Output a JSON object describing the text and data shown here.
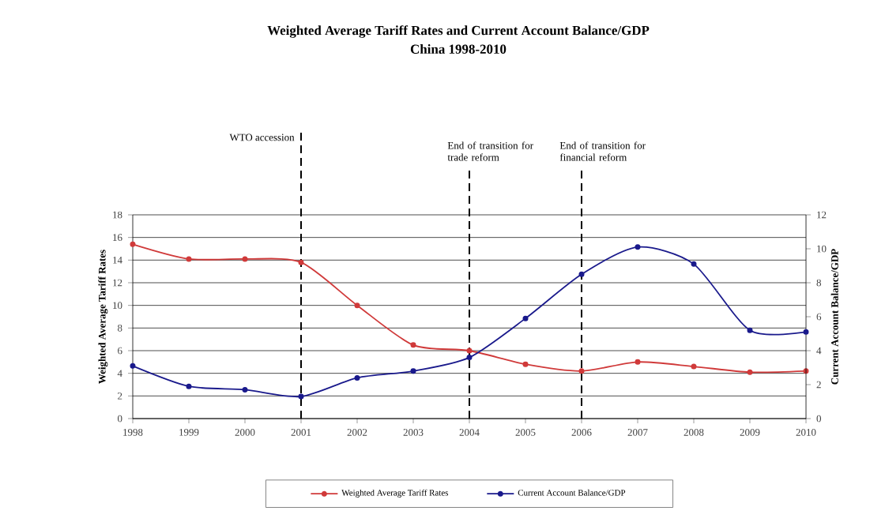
{
  "chart_data": {
    "type": "line",
    "title": "Weighted Average Tariff Rates and Current Account Balance/GDP",
    "subtitle": "China 1998-2010",
    "ylabel": "Weighted Average Tariff Rates",
    "y2label": "Current Account Balance/GDP",
    "x": [
      1998,
      1999,
      2000,
      2001,
      2002,
      2003,
      2004,
      2005,
      2006,
      2007,
      2008,
      2009,
      2010
    ],
    "xlim": [
      1998,
      2010
    ],
    "xticks": [
      1998,
      1999,
      2000,
      2001,
      2002,
      2003,
      2004,
      2005,
      2006,
      2007,
      2008,
      2009,
      2010
    ],
    "ylim": [
      0,
      18
    ],
    "yticks": [
      0,
      2,
      4,
      6,
      8,
      10,
      12,
      14,
      16,
      18
    ],
    "y2lim": [
      0,
      12
    ],
    "y2ticks": [
      0,
      2,
      4,
      6,
      8,
      10,
      12
    ],
    "series": [
      {
        "name": "Weighted Average Tariff Rates",
        "color": "#d03a3a",
        "values": [
          15.4,
          14.1,
          14.1,
          13.8,
          10.0,
          6.5,
          6.0,
          4.8,
          4.2,
          5.0,
          4.6,
          4.1,
          4.2
        ]
      },
      {
        "name": "Current Account Balance/GDP",
        "color": "#1a1a8c",
        "axis": "y2",
        "values": [
          3.1,
          1.9,
          1.7,
          1.3,
          2.4,
          2.8,
          3.6,
          5.9,
          8.5,
          10.1,
          9.1,
          5.2,
          5.1
        ]
      }
    ],
    "ref_lines": [
      {
        "axis": "x",
        "value": 2001,
        "label": "WTO accession",
        "color": "#000000",
        "line_style": "dashed"
      },
      {
        "axis": "x",
        "value": 2004,
        "label": "End of transition for trade reform",
        "color": "#000000",
        "line_style": "dashed"
      },
      {
        "axis": "x",
        "value": 2006,
        "label": "End of transition for financial reform",
        "color": "#000000",
        "line_style": "dashed"
      }
    ],
    "grid": "y",
    "legend": "bottom",
    "marker": "circle",
    "line_style": "solid"
  }
}
